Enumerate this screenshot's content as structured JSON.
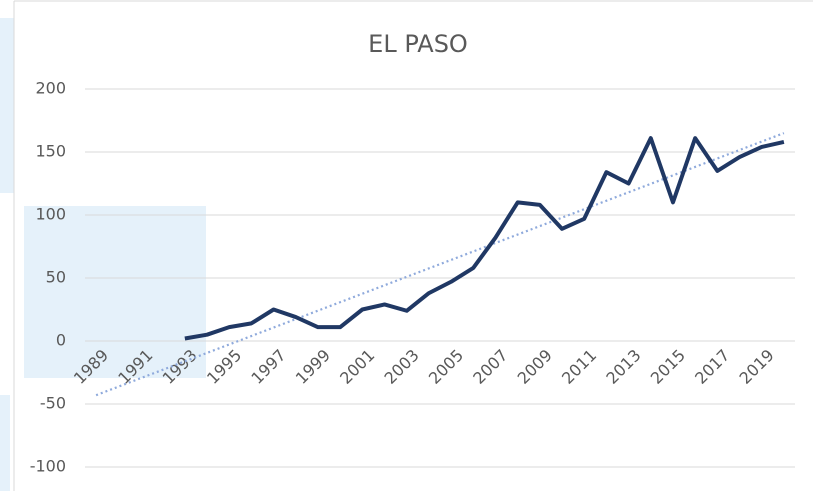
{
  "chart_data": {
    "type": "line",
    "title": "EL PASO",
    "categories": [
      "1989",
      null,
      "1991",
      null,
      "1993",
      null,
      "1995",
      null,
      "1997",
      null,
      "1999",
      null,
      "2001",
      null,
      "2003",
      null,
      "2005",
      null,
      "2007",
      null,
      "2009",
      null,
      "2011",
      null,
      "2013",
      null,
      "2015",
      null,
      "2017",
      null,
      "2019",
      null
    ],
    "series": [
      {
        "color": "#203864",
        "values": [
          null,
          null,
          null,
          null,
          2,
          5,
          11,
          14,
          25,
          19,
          11,
          11,
          25,
          29,
          24,
          38,
          47,
          58,
          82,
          110,
          108,
          89,
          97,
          134,
          125,
          161,
          110,
          161,
          135,
          146,
          154,
          158
        ]
      }
    ],
    "trendline": {
      "color": "#8faadc",
      "values": [
        -43,
        165
      ]
    },
    "ylim": [
      -100,
      200
    ],
    "yticks": [
      -100,
      -50,
      0,
      50,
      100,
      150,
      200
    ],
    "grid": true
  }
}
